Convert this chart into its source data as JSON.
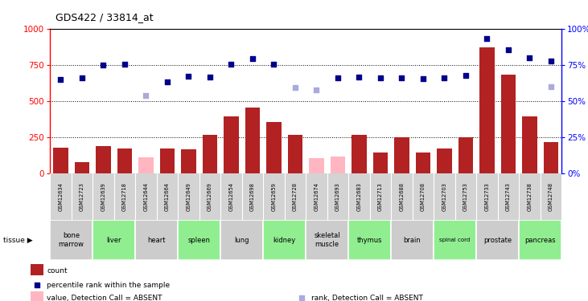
{
  "title": "GDS422 / 33814_at",
  "samples": [
    "GSM12634",
    "GSM12723",
    "GSM12639",
    "GSM12718",
    "GSM12644",
    "GSM12664",
    "GSM12649",
    "GSM12669",
    "GSM12654",
    "GSM12698",
    "GSM12659",
    "GSM12728",
    "GSM12674",
    "GSM12693",
    "GSM12683",
    "GSM12713",
    "GSM12688",
    "GSM12708",
    "GSM12703",
    "GSM12753",
    "GSM12733",
    "GSM12743",
    "GSM12738",
    "GSM12748"
  ],
  "bar_values": [
    175,
    75,
    185,
    170,
    null,
    170,
    165,
    265,
    390,
    455,
    355,
    265,
    null,
    null,
    265,
    140,
    250,
    140,
    170,
    250,
    870,
    680,
    390,
    215
  ],
  "bar_absent": [
    null,
    null,
    null,
    null,
    110,
    null,
    null,
    null,
    null,
    null,
    null,
    null,
    105,
    115,
    null,
    null,
    null,
    null,
    null,
    null,
    null,
    null,
    null,
    null
  ],
  "rank_values": [
    650,
    660,
    750,
    755,
    null,
    630,
    670,
    665,
    755,
    795,
    755,
    null,
    null,
    660,
    665,
    660,
    660,
    655,
    660,
    675,
    930,
    855,
    800,
    775
  ],
  "rank_absent": [
    null,
    null,
    null,
    null,
    535,
    null,
    null,
    null,
    null,
    null,
    null,
    595,
    575,
    null,
    null,
    null,
    null,
    null,
    null,
    null,
    null,
    null,
    null,
    600
  ],
  "tissues": [
    {
      "name": "bone\nmarrow",
      "start": 0,
      "end": 2,
      "color": "#cccccc"
    },
    {
      "name": "liver",
      "start": 2,
      "end": 4,
      "color": "#90ee90"
    },
    {
      "name": "heart",
      "start": 4,
      "end": 6,
      "color": "#cccccc"
    },
    {
      "name": "spleen",
      "start": 6,
      "end": 8,
      "color": "#90ee90"
    },
    {
      "name": "lung",
      "start": 8,
      "end": 10,
      "color": "#cccccc"
    },
    {
      "name": "kidney",
      "start": 10,
      "end": 12,
      "color": "#90ee90"
    },
    {
      "name": "skeletal\nmuscle",
      "start": 12,
      "end": 14,
      "color": "#cccccc"
    },
    {
      "name": "thymus",
      "start": 14,
      "end": 16,
      "color": "#90ee90"
    },
    {
      "name": "brain",
      "start": 16,
      "end": 18,
      "color": "#cccccc"
    },
    {
      "name": "spinal cord",
      "start": 18,
      "end": 20,
      "color": "#90ee90"
    },
    {
      "name": "prostate",
      "start": 20,
      "end": 22,
      "color": "#cccccc"
    },
    {
      "name": "pancreas",
      "start": 22,
      "end": 24,
      "color": "#90ee90"
    }
  ],
  "bar_color": "#b22222",
  "bar_absent_color": "#ffb6c1",
  "rank_color": "#00008b",
  "rank_absent_color": "#aaaadd",
  "ylim": [
    0,
    1000
  ],
  "yticks": [
    0,
    250,
    500,
    750,
    1000
  ],
  "grid_values": [
    250,
    500,
    750
  ],
  "bg_color": "#ffffff",
  "ticklabel_bg": "#d3d3d3",
  "legend_items": [
    {
      "type": "rect",
      "color": "#b22222",
      "label": "count"
    },
    {
      "type": "square",
      "color": "#00008b",
      "label": "percentile rank within the sample"
    },
    {
      "type": "rect",
      "color": "#ffb6c1",
      "label": "value, Detection Call = ABSENT"
    },
    {
      "type": "square",
      "color": "#aaaadd",
      "label": "rank, Detection Call = ABSENT"
    }
  ]
}
